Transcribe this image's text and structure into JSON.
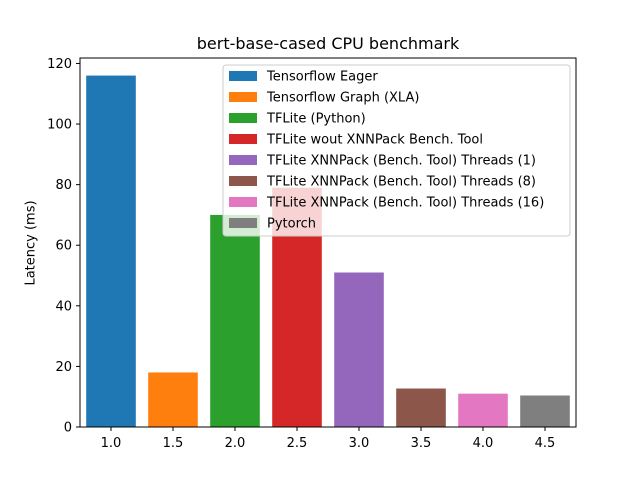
{
  "chart_data": {
    "type": "bar",
    "title": "bert-base-cased CPU benchmark",
    "xlabel": "",
    "ylabel": "Latency (ms)",
    "xlim": [
      0.75,
      4.75
    ],
    "ylim": [
      0,
      121.8
    ],
    "xticks": [
      "1.0",
      "1.5",
      "2.0",
      "2.5",
      "3.0",
      "3.5",
      "4.0",
      "4.5"
    ],
    "yticks": [
      "0",
      "20",
      "40",
      "60",
      "80",
      "100",
      "120"
    ],
    "bar_width": 0.4,
    "legend_position": "top-right",
    "series": [
      {
        "name": "Tensorflow Eager",
        "x": 1.0,
        "value": 116,
        "color": "#1f77b4"
      },
      {
        "name": "Tensorflow Graph (XLA)",
        "x": 1.5,
        "value": 18,
        "color": "#ff7f0e"
      },
      {
        "name": "TFLite (Python)",
        "x": 2.0,
        "value": 70,
        "color": "#2ca02c"
      },
      {
        "name": "TFLite wout XNNPack Bench. Tool",
        "x": 2.5,
        "value": 79,
        "color": "#d62728"
      },
      {
        "name": "TFLite XNNPack (Bench. Tool) Threads (1)",
        "x": 3.0,
        "value": 51,
        "color": "#9467bd"
      },
      {
        "name": "TFLite XNNPack (Bench. Tool) Threads (8)",
        "x": 3.5,
        "value": 12.7,
        "color": "#8c564b"
      },
      {
        "name": "TFLite XNNPack (Bench. Tool) Threads (16)",
        "x": 4.0,
        "value": 11,
        "color": "#e377c2"
      },
      {
        "name": "Pytorch",
        "x": 4.5,
        "value": 10.4,
        "color": "#7f7f7f"
      }
    ]
  }
}
